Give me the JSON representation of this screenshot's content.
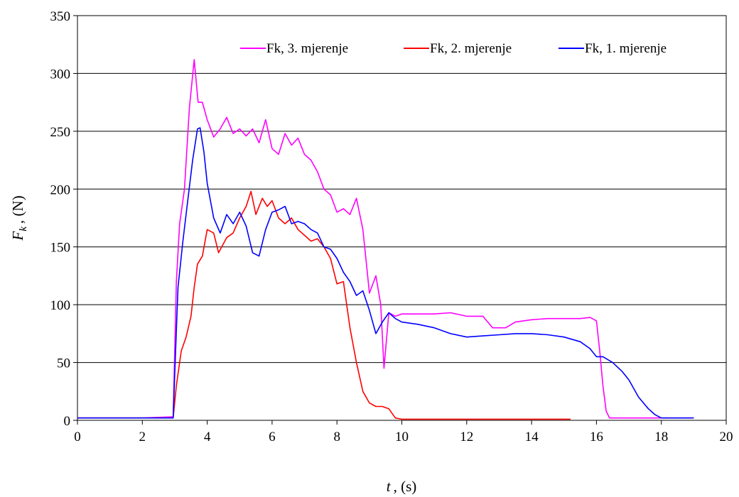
{
  "chart_data": {
    "type": "line",
    "title": "",
    "xlabel": "t , (s)",
    "xlabel_var": "t",
    "xlabel_unit": ", (s)",
    "ylabel": "F_k , (N)",
    "ylabel_var": "F",
    "ylabel_sub": "k",
    "ylabel_unit": ", (N)",
    "xlim": [
      0,
      20
    ],
    "ylim": [
      0,
      350
    ],
    "xticks": [
      "0",
      "2",
      "4",
      "6",
      "8",
      "10",
      "12",
      "14",
      "16",
      "18",
      "20"
    ],
    "yticks": [
      "0",
      "50",
      "100",
      "150",
      "200",
      "250",
      "300",
      "350"
    ],
    "grid": "horizontal",
    "legend_position": "top-right",
    "series": [
      {
        "name": "Fk, 3. mjerenje",
        "color": "#ff00ff",
        "x": [
          0,
          1,
          2,
          2.95,
          3.05,
          3.15,
          3.3,
          3.45,
          3.6,
          3.72,
          3.85,
          4.0,
          4.2,
          4.4,
          4.6,
          4.8,
          5.0,
          5.2,
          5.4,
          5.6,
          5.8,
          6.0,
          6.2,
          6.4,
          6.6,
          6.8,
          7.0,
          7.2,
          7.4,
          7.6,
          7.8,
          8.0,
          8.2,
          8.4,
          8.6,
          8.8,
          9.0,
          9.2,
          9.35,
          9.45,
          9.6,
          9.8,
          10.0,
          10.5,
          11.0,
          11.5,
          12.0,
          12.5,
          12.8,
          13.2,
          13.5,
          14.0,
          14.5,
          15.0,
          15.5,
          15.8,
          16.0,
          16.1,
          16.2,
          16.3,
          16.4,
          17.0,
          18.0,
          19.0
        ],
        "y": [
          2,
          2,
          2,
          3,
          120,
          170,
          200,
          270,
          312,
          275,
          275,
          260,
          245,
          252,
          262,
          248,
          252,
          246,
          252,
          240,
          260,
          235,
          230,
          248,
          238,
          244,
          230,
          225,
          215,
          200,
          195,
          180,
          183,
          178,
          192,
          165,
          110,
          125,
          100,
          45,
          93,
          90,
          92,
          92,
          92,
          93,
          90,
          90,
          80,
          80,
          85,
          87,
          88,
          88,
          88,
          89,
          86,
          60,
          30,
          8,
          2,
          2,
          2,
          2
        ]
      },
      {
        "name": "Fk, 2. mjerenje",
        "color": "#ff0000",
        "x": [
          0,
          1,
          2,
          2.95,
          3.05,
          3.2,
          3.35,
          3.5,
          3.6,
          3.7,
          3.85,
          4.0,
          4.2,
          4.35,
          4.6,
          4.8,
          5.0,
          5.2,
          5.35,
          5.5,
          5.7,
          5.85,
          6.0,
          6.2,
          6.4,
          6.6,
          6.8,
          7.0,
          7.2,
          7.4,
          7.6,
          7.8,
          8.0,
          8.2,
          8.4,
          8.6,
          8.8,
          9.0,
          9.2,
          9.4,
          9.6,
          9.8,
          10.0,
          11.0,
          12.0,
          13.0,
          14.0,
          15.0,
          15.2
        ],
        "y": [
          2,
          2,
          2,
          2,
          30,
          60,
          72,
          90,
          115,
          135,
          142,
          165,
          162,
          145,
          158,
          162,
          175,
          185,
          198,
          178,
          192,
          185,
          190,
          175,
          170,
          175,
          165,
          160,
          155,
          157,
          150,
          140,
          118,
          120,
          80,
          50,
          25,
          15,
          12,
          12,
          10,
          2,
          1,
          1,
          1,
          1,
          1,
          1,
          1
        ]
      },
      {
        "name": "Fk, 1. mjerenje",
        "color": "#0000ff",
        "x": [
          0,
          1,
          2,
          2.95,
          3.0,
          3.1,
          3.25,
          3.4,
          3.55,
          3.7,
          3.78,
          3.9,
          4.0,
          4.2,
          4.4,
          4.6,
          4.8,
          5.0,
          5.2,
          5.4,
          5.6,
          5.8,
          6.0,
          6.2,
          6.4,
          6.6,
          6.8,
          7.0,
          7.2,
          7.4,
          7.6,
          7.8,
          8.0,
          8.2,
          8.4,
          8.6,
          8.8,
          9.0,
          9.2,
          9.4,
          9.6,
          9.8,
          10.0,
          10.5,
          11.0,
          11.5,
          12.0,
          12.5,
          13.0,
          13.5,
          14.0,
          14.5,
          15.0,
          15.5,
          15.8,
          16.0,
          16.2,
          16.5,
          16.8,
          17.0,
          17.3,
          17.6,
          17.8,
          18.0,
          18.5,
          19.0
        ],
        "y": [
          2,
          2,
          2,
          2,
          40,
          115,
          155,
          190,
          225,
          252,
          253,
          232,
          205,
          175,
          162,
          178,
          170,
          180,
          168,
          145,
          142,
          165,
          180,
          182,
          185,
          170,
          172,
          170,
          165,
          162,
          150,
          148,
          140,
          128,
          120,
          108,
          112,
          95,
          75,
          85,
          93,
          88,
          85,
          83,
          80,
          75,
          72,
          73,
          74,
          75,
          75,
          74,
          72,
          68,
          62,
          55,
          55,
          50,
          42,
          35,
          20,
          10,
          5,
          2,
          2,
          2
        ]
      }
    ]
  }
}
